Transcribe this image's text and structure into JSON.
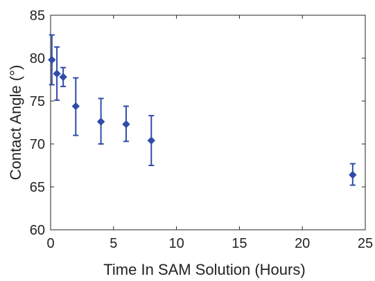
{
  "chart_data": {
    "type": "scatter",
    "xlabel": "Time In SAM Solution (Hours)",
    "ylabel": "Contact Angle (°)",
    "xlim": [
      0,
      25
    ],
    "ylim": [
      60,
      85
    ],
    "xticks": [
      "0",
      "5",
      "10",
      "15",
      "20",
      "25"
    ],
    "yticks": [
      "60",
      "65",
      "70",
      "75",
      "80",
      "85"
    ],
    "grid": false,
    "legend": "none",
    "marker": "diamond",
    "color": "#2f4ca8",
    "series": [
      {
        "x": [
          0.1,
          0.5,
          1,
          2,
          4,
          6,
          8,
          24
        ],
        "y": [
          79.8,
          78.2,
          77.8,
          74.4,
          72.6,
          72.3,
          70.4,
          66.4
        ],
        "error_low": [
          76.9,
          75.1,
          76.7,
          71.0,
          70.0,
          70.3,
          67.5,
          65.2
        ],
        "error_high": [
          82.7,
          81.3,
          78.9,
          77.7,
          75.3,
          74.4,
          73.3,
          67.7
        ]
      }
    ]
  }
}
